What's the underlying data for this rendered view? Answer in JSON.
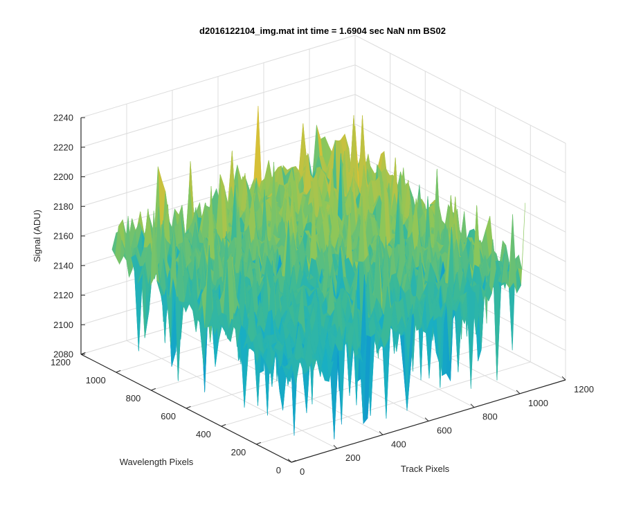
{
  "chart_data": {
    "type": "surface",
    "title": "d2016122104_img.mat int time = 1.6904 sec  NaN nm BS02",
    "xlabel": "Track Pixels",
    "ylabel": "Wavelength Pixels",
    "zlabel": "Signal (ADU)",
    "xlim": [
      0,
      1200
    ],
    "ylim": [
      0,
      1200
    ],
    "zlim": [
      2080,
      2240
    ],
    "xticks": [
      "0",
      "200",
      "400",
      "600",
      "800",
      "1000",
      "1200"
    ],
    "yticks": [
      "0",
      "200",
      "400",
      "600",
      "800",
      "1000",
      "1200"
    ],
    "zticks": [
      "2080",
      "2100",
      "2120",
      "2140",
      "2160",
      "2180",
      "2200",
      "2220",
      "2240"
    ],
    "grid": true,
    "colormap": "parula",
    "data_extent": {
      "x": [
        1,
        1024
      ],
      "y": [
        1,
        1024
      ]
    },
    "signal_mean": 2160,
    "signal_range_approx": [
      2085,
      2240
    ],
    "colors": {
      "low": "#0d8fd0",
      "mid": "#2bb5a7",
      "midhigh": "#8cc85a",
      "high": "#e6c12f"
    }
  }
}
